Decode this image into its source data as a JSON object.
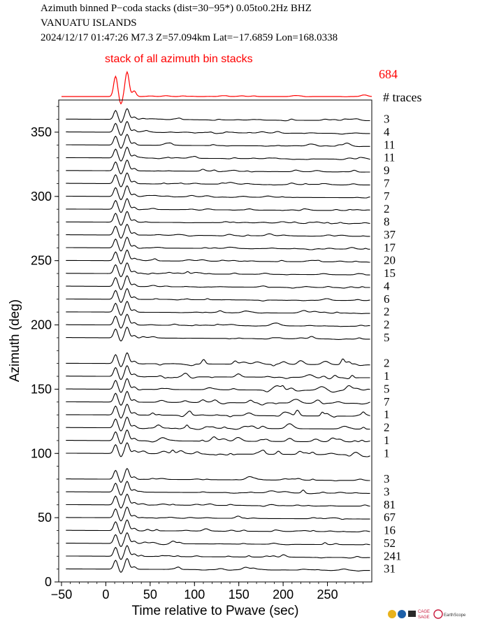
{
  "header": {
    "line1": "Azimuth binned P−coda stacks (dist=30−95*)  0.05to0.2Hz  BHZ",
    "line2": "VANUATU ISLANDS",
    "line3": "2024/12/17  01:47:26  M7.3  Z=57.094km Lat=−17.6859 Lon=168.0338"
  },
  "summary": {
    "label": "stack of all azimuth bin stacks",
    "total_traces": "684",
    "traces_header": "# traces",
    "color": "#ff0000"
  },
  "logos": {
    "cage": "CAGE",
    "sage": "SAGE",
    "earthscope": "EarthScope"
  },
  "chart_data": {
    "type": "line",
    "title": "Azimuth binned P−coda stacks (dist=30−95*)  0.05to0.2Hz  BHZ",
    "xlabel": "Time relative to Pwave (sec)",
    "ylabel": "Azimuth (deg)",
    "xlim": [
      -50,
      300
    ],
    "ylim": [
      0,
      375
    ],
    "xticks": [
      "−50",
      "0",
      "50",
      "100",
      "150",
      "200",
      "250"
    ],
    "yticks": [
      "0",
      "50",
      "100",
      "150",
      "200",
      "250",
      "300",
      "350"
    ],
    "trace_color": "#000000",
    "series": [
      {
        "azimuth": 360,
        "traces": "3"
      },
      {
        "azimuth": 350,
        "traces": "4"
      },
      {
        "azimuth": 340,
        "traces": "11"
      },
      {
        "azimuth": 330,
        "traces": "11"
      },
      {
        "azimuth": 320,
        "traces": "9"
      },
      {
        "azimuth": 310,
        "traces": "7"
      },
      {
        "azimuth": 300,
        "traces": "7"
      },
      {
        "azimuth": 290,
        "traces": "2"
      },
      {
        "azimuth": 280,
        "traces": "8"
      },
      {
        "azimuth": 270,
        "traces": "37"
      },
      {
        "azimuth": 260,
        "traces": "17"
      },
      {
        "azimuth": 250,
        "traces": "20"
      },
      {
        "azimuth": 240,
        "traces": "15"
      },
      {
        "azimuth": 230,
        "traces": "4"
      },
      {
        "azimuth": 220,
        "traces": "6"
      },
      {
        "azimuth": 210,
        "traces": "2"
      },
      {
        "azimuth": 200,
        "traces": "2"
      },
      {
        "azimuth": 190,
        "traces": "5"
      },
      {
        "azimuth": 170,
        "traces": "2"
      },
      {
        "azimuth": 160,
        "traces": "1"
      },
      {
        "azimuth": 150,
        "traces": "5"
      },
      {
        "azimuth": 140,
        "traces": "7"
      },
      {
        "azimuth": 130,
        "traces": "1"
      },
      {
        "azimuth": 120,
        "traces": "2"
      },
      {
        "azimuth": 110,
        "traces": "1"
      },
      {
        "azimuth": 100,
        "traces": "1"
      },
      {
        "azimuth": 80,
        "traces": "3"
      },
      {
        "azimuth": 70,
        "traces": "3"
      },
      {
        "azimuth": 60,
        "traces": "81"
      },
      {
        "azimuth": 50,
        "traces": "67"
      },
      {
        "azimuth": 40,
        "traces": "16"
      },
      {
        "azimuth": 30,
        "traces": "52"
      },
      {
        "azimuth": 20,
        "traces": "241"
      },
      {
        "azimuth": 10,
        "traces": "31"
      }
    ]
  }
}
